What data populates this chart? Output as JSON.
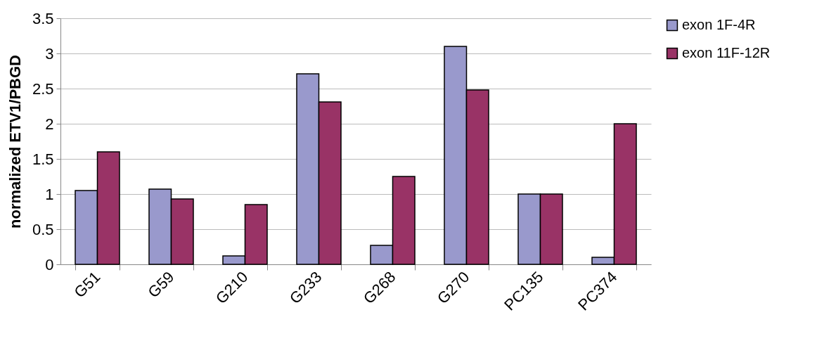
{
  "chart_data": {
    "type": "bar",
    "ylabel": "normalized ETV1/PBGD",
    "categories": [
      "G51",
      "G59",
      "G210",
      "G233",
      "G268",
      "G270",
      "PC135",
      "PC374"
    ],
    "series": [
      {
        "name": "exon 1F-4R",
        "color": "#9999cc",
        "values": [
          1.05,
          1.07,
          0.12,
          2.71,
          0.27,
          3.1,
          1.0,
          0.1
        ]
      },
      {
        "name": "exon 11F-12R",
        "color": "#993366",
        "values": [
          1.6,
          0.93,
          0.85,
          2.31,
          1.25,
          2.48,
          1.0,
          2.0
        ]
      }
    ],
    "ylim": [
      0,
      3.5
    ],
    "yticks": [
      0,
      0.5,
      1,
      1.5,
      2,
      2.5,
      3,
      3.5
    ],
    "grid": "y",
    "legend": "right"
  }
}
